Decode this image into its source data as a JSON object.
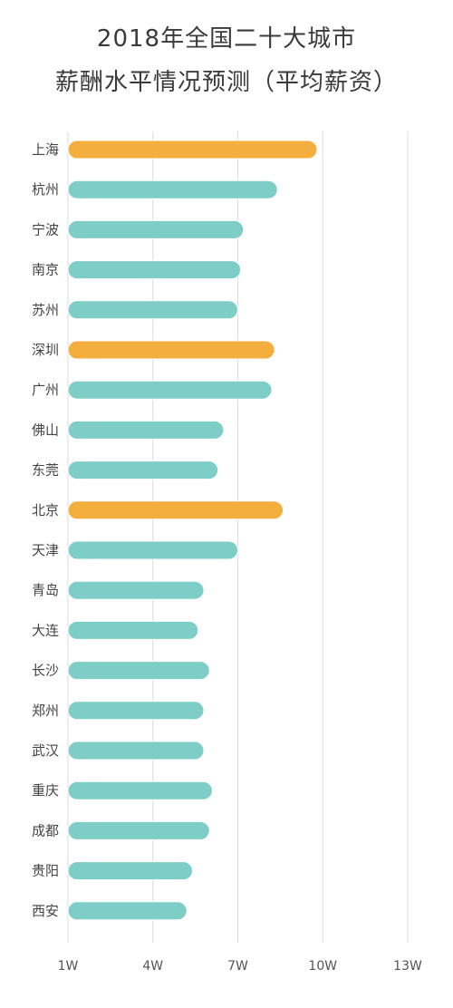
{
  "chart_data": {
    "type": "bar",
    "orientation": "horizontal",
    "title": [
      "2018年全国二十大城市",
      "薪酬水平情况预测（平均薪资）"
    ],
    "categories": [
      "上海",
      "杭州",
      "宁波",
      "南京",
      "苏州",
      "深圳",
      "广州",
      "佛山",
      "东莞",
      "北京",
      "天津",
      "青岛",
      "大连",
      "长沙",
      "郑州",
      "武汉",
      "重庆",
      "成都",
      "贵阳",
      "西安"
    ],
    "values": [
      9.8,
      8.4,
      7.2,
      7.1,
      7.0,
      8.3,
      8.2,
      6.5,
      6.3,
      8.6,
      7.0,
      5.8,
      5.6,
      6.0,
      5.8,
      5.8,
      6.1,
      6.0,
      5.4,
      5.2
    ],
    "highlighted": [
      true,
      false,
      false,
      false,
      false,
      true,
      false,
      false,
      false,
      true,
      false,
      false,
      false,
      false,
      false,
      false,
      false,
      false,
      false,
      false
    ],
    "colors": {
      "default": "#7ecdc6",
      "highlight": "#f4ae3d",
      "grid": "#dcdcdc"
    },
    "xticks": [
      1,
      4,
      7,
      10,
      13
    ],
    "xtick_labels": [
      "1W",
      "4W",
      "7W",
      "10W",
      "13W"
    ],
    "xlim": [
      1,
      13
    ],
    "grid": true
  }
}
